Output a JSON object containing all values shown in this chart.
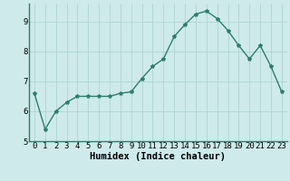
{
  "x": [
    0,
    1,
    2,
    3,
    4,
    5,
    6,
    7,
    8,
    9,
    10,
    11,
    12,
    13,
    14,
    15,
    16,
    17,
    18,
    19,
    20,
    21,
    22,
    23
  ],
  "y": [
    6.6,
    5.4,
    6.0,
    6.3,
    6.5,
    6.5,
    6.5,
    6.5,
    6.6,
    6.65,
    7.1,
    7.5,
    7.75,
    8.5,
    8.9,
    9.25,
    9.35,
    9.1,
    8.7,
    8.2,
    7.75,
    8.2,
    7.5,
    6.65
  ],
  "line_color": "#2e7d70",
  "marker": "*",
  "marker_size": 3,
  "bg_color": "#ceeaea",
  "grid_color": "#aed4d4",
  "xlabel": "Humidex (Indice chaleur)",
  "xlim": [
    -0.5,
    23.5
  ],
  "ylim": [
    5.0,
    9.6
  ],
  "yticks": [
    5,
    6,
    7,
    8,
    9
  ],
  "xticks": [
    0,
    1,
    2,
    3,
    4,
    5,
    6,
    7,
    8,
    9,
    10,
    11,
    12,
    13,
    14,
    15,
    16,
    17,
    18,
    19,
    20,
    21,
    22,
    23
  ],
  "xlabel_fontsize": 7.5,
  "tick_fontsize": 6.5,
  "line_width": 1.0
}
